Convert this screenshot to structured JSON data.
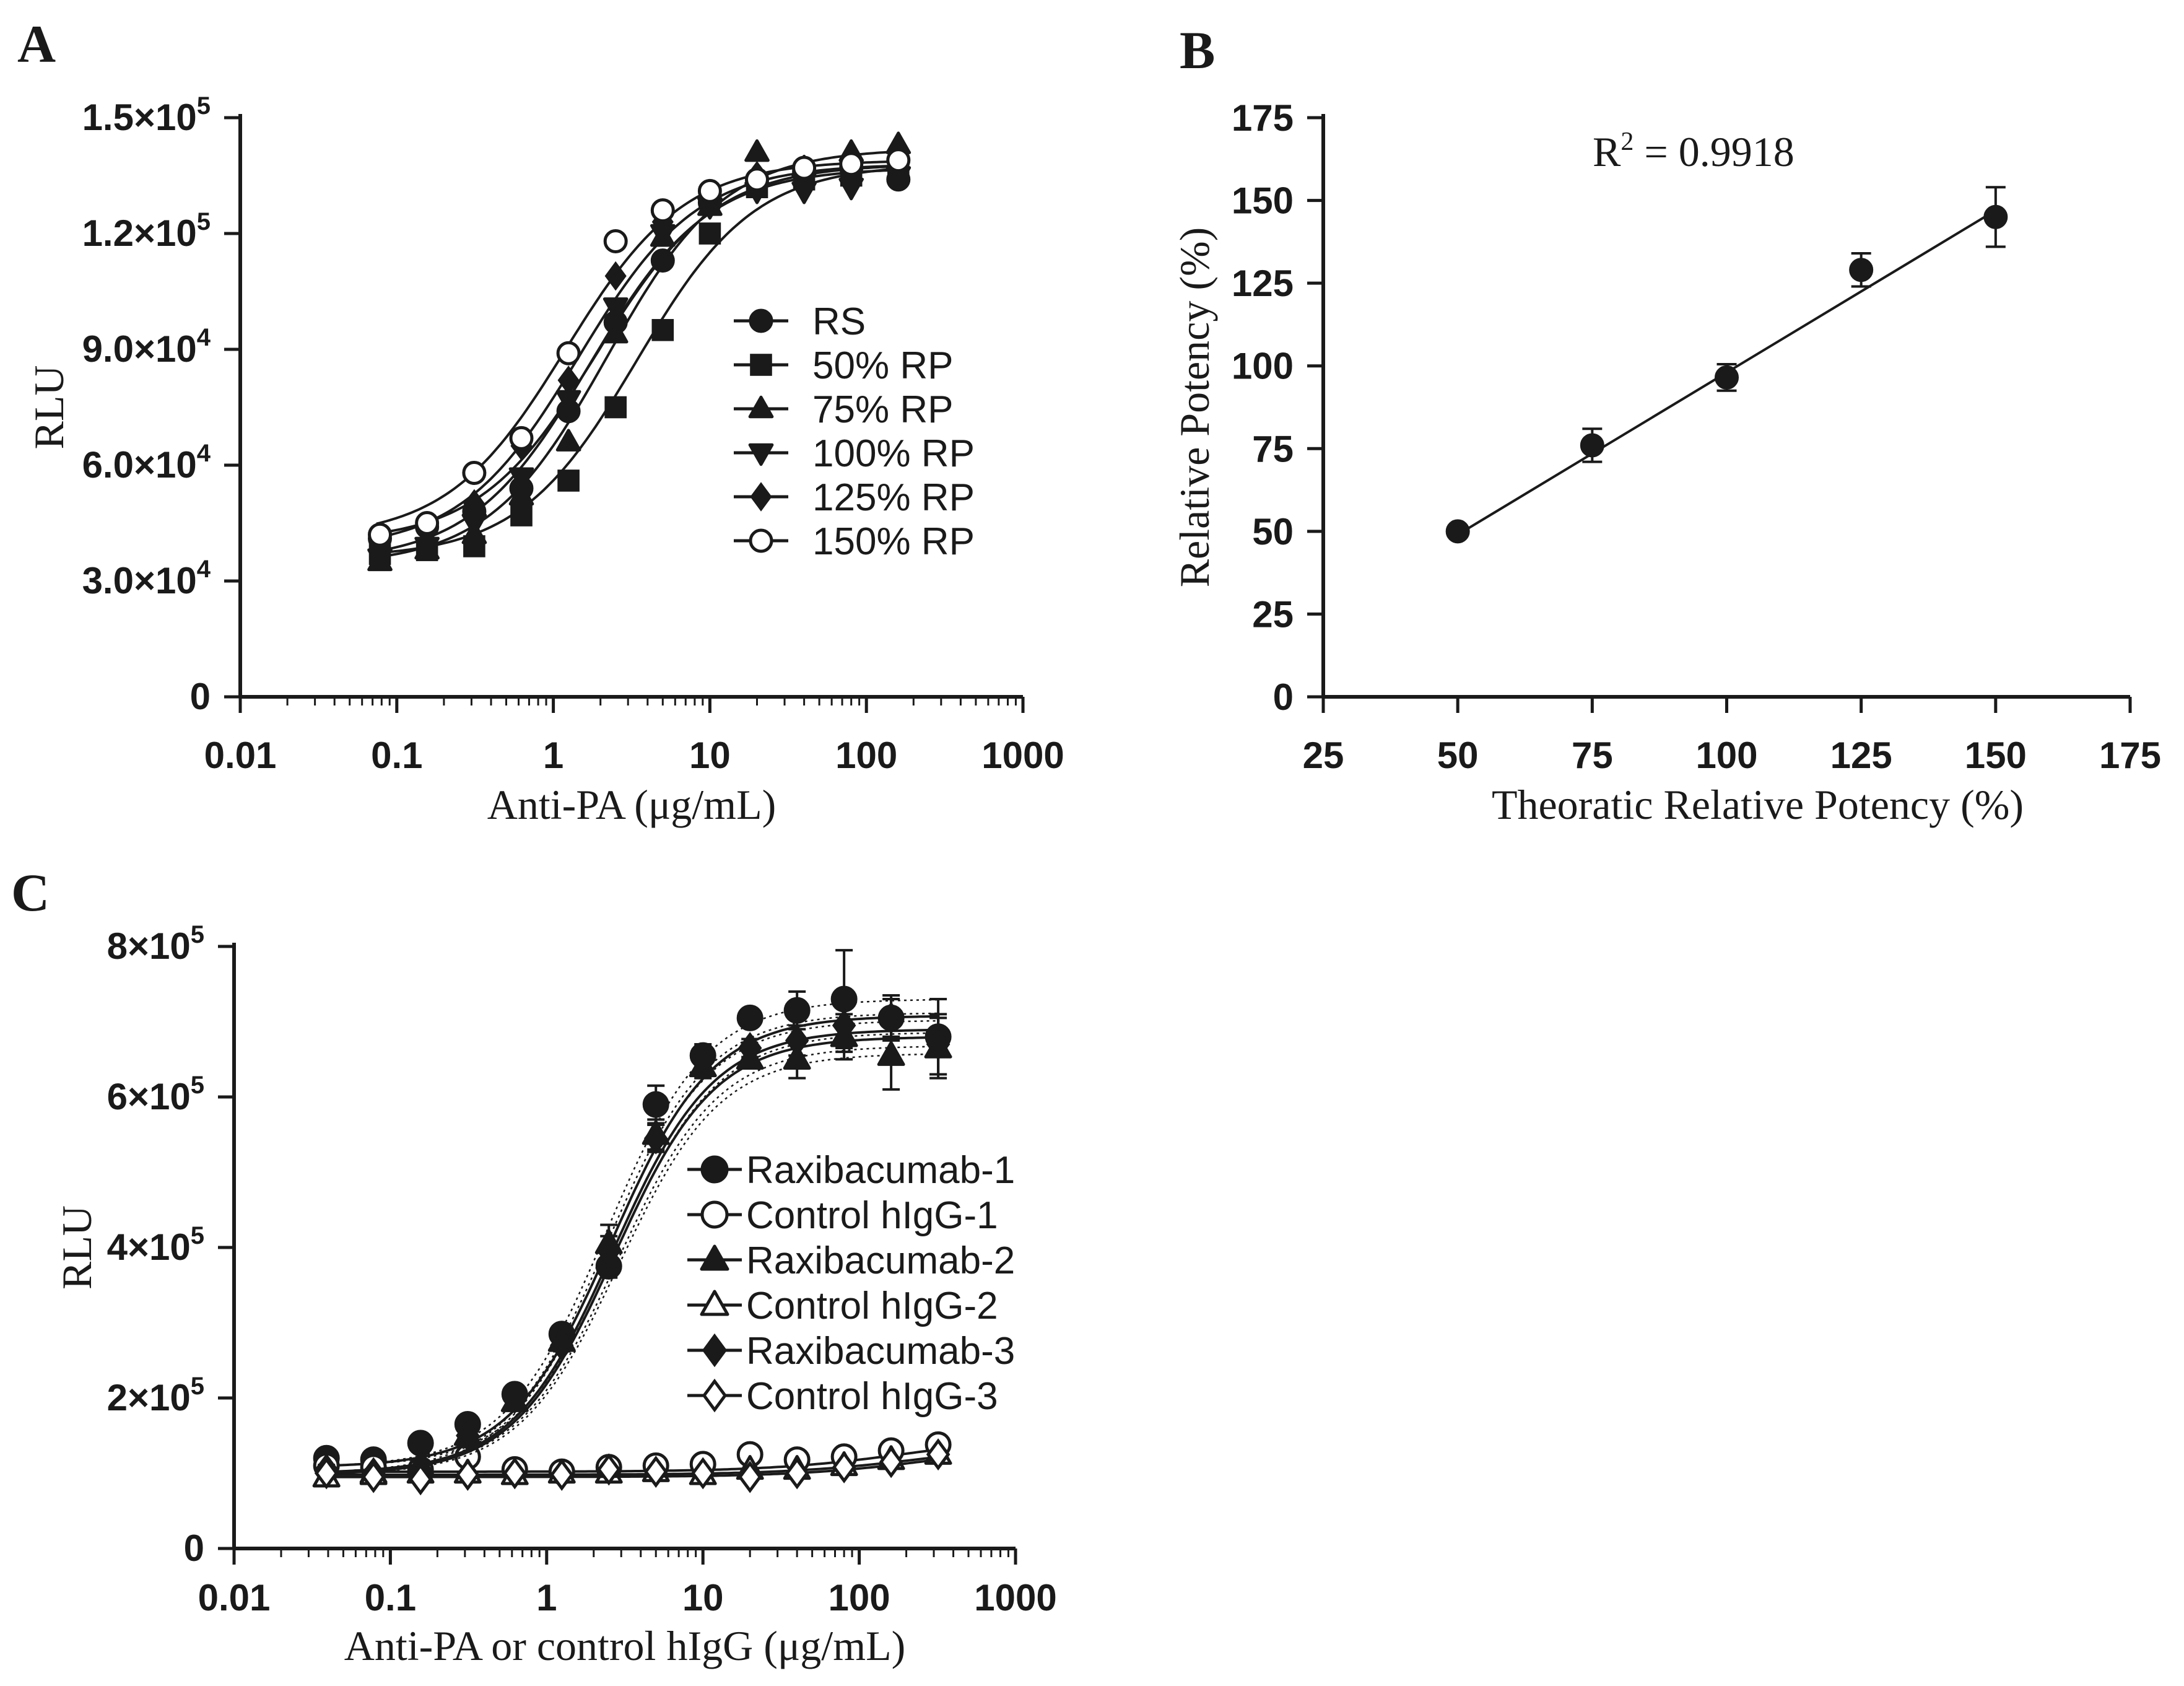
{
  "figure": {
    "background": "#ffffff",
    "ink": "#1a1a1a"
  },
  "chart_data": [
    {
      "id": "A",
      "panel_label": "A",
      "type": "line",
      "x_scale": "log",
      "xlabel": "Anti-PA (μg/mL)",
      "ylabel": "RLU",
      "xlim": [
        0.01,
        1000
      ],
      "ylim": [
        0,
        150000
      ],
      "x_ticks": [
        0.01,
        0.1,
        1,
        10,
        100,
        1000
      ],
      "x_tick_labels": [
        "0.01",
        "0.1",
        "1",
        "10",
        "100",
        "1000"
      ],
      "y_ticks": [
        0,
        30000,
        60000,
        90000,
        120000,
        150000
      ],
      "y_tick_labels": [
        {
          "mant": "0",
          "exp": ""
        },
        {
          "mant": "3.0×10",
          "exp": "4"
        },
        {
          "mant": "6.0×10",
          "exp": "4"
        },
        {
          "mant": "9.0×10",
          "exp": "4"
        },
        {
          "mant": "1.2×10",
          "exp": "5"
        },
        {
          "mant": "1.5×10",
          "exp": "5"
        }
      ],
      "legend_position": "center-right",
      "x": [
        0.078,
        0.156,
        0.3125,
        0.625,
        1.25,
        2.5,
        5,
        10,
        20,
        40,
        80,
        160
      ],
      "series": [
        {
          "name": "RS",
          "marker": "circle",
          "values": [
            41000,
            44000,
            48000,
            54000,
            74000,
            97000,
            113000,
            128000,
            134000,
            136000,
            137000,
            134000
          ],
          "fit": {
            "bottom": 40000,
            "top": 138000,
            "ec50": 1.9,
            "hill": 1.15
          }
        },
        {
          "name": "50% RP",
          "marker": "square",
          "values": [
            37000,
            38000,
            39000,
            47000,
            56000,
            75000,
            95000,
            120000,
            132000,
            134000,
            135000,
            136000
          ],
          "fit": {
            "bottom": 36000,
            "top": 138000,
            "ec50": 3.4,
            "hill": 1.15
          }
        },
        {
          "name": "75% RP",
          "marker": "triangle-up",
          "values": [
            35000,
            38000,
            42000,
            52000,
            66000,
            94000,
            119000,
            127000,
            141000,
            137000,
            141000,
            143000
          ],
          "fit": {
            "bottom": 34000,
            "top": 142000,
            "ec50": 2.2,
            "hill": 1.15
          }
        },
        {
          "name": "100% RP",
          "marker": "triangle-down",
          "values": [
            36000,
            39000,
            45000,
            57000,
            77000,
            101000,
            120000,
            127000,
            131000,
            131000,
            132000,
            135000
          ],
          "fit": {
            "bottom": 35000,
            "top": 137000,
            "ec50": 1.7,
            "hill": 1.15
          }
        },
        {
          "name": "125% RP",
          "marker": "diamond",
          "values": [
            39000,
            43000,
            50000,
            65000,
            82000,
            109000,
            123000,
            130000,
            135000,
            136000,
            136000,
            136000
          ],
          "fit": {
            "bottom": 38000,
            "top": 138000,
            "ec50": 1.45,
            "hill": 1.15
          }
        },
        {
          "name": "150% RP",
          "marker": "circle-open",
          "values": [
            42000,
            45000,
            58000,
            67000,
            89000,
            118000,
            126000,
            131000,
            134000,
            137000,
            138000,
            139000
          ],
          "fit": {
            "bottom": 41000,
            "top": 139000,
            "ec50": 1.2,
            "hill": 1.15
          }
        }
      ]
    },
    {
      "id": "B",
      "panel_label": "B",
      "type": "scatter",
      "xlabel": "Theoratic Relative Potency (%)",
      "ylabel": "Relative Potency (%)",
      "xlim": [
        25,
        175
      ],
      "ylim": [
        0,
        175
      ],
      "x_ticks": [
        25,
        50,
        75,
        100,
        125,
        150,
        175
      ],
      "y_ticks": [
        0,
        25,
        50,
        75,
        100,
        125,
        150,
        175
      ],
      "annotation": {
        "base": "R",
        "exp": "2",
        "text": " = 0.9918"
      },
      "points": [
        {
          "x": 50,
          "y": 50,
          "err": 1
        },
        {
          "x": 75,
          "y": 76,
          "err": 5
        },
        {
          "x": 100,
          "y": 96.5,
          "err": 4
        },
        {
          "x": 125,
          "y": 129,
          "err": 5
        },
        {
          "x": 150,
          "y": 145,
          "err": 9
        }
      ],
      "fit_line": {
        "x": [
          50,
          150
        ],
        "y": [
          49,
          147
        ]
      }
    },
    {
      "id": "C",
      "panel_label": "C",
      "type": "line",
      "x_scale": "log",
      "xlabel": "Anti-PA or control hIgG (μg/mL)",
      "ylabel": "RLU",
      "xlim": [
        0.01,
        1000
      ],
      "ylim": [
        0,
        800000
      ],
      "x_ticks": [
        0.01,
        0.1,
        1,
        10,
        100,
        1000
      ],
      "x_tick_labels": [
        "0.01",
        "0.1",
        "1",
        "10",
        "100",
        "1000"
      ],
      "y_ticks": [
        0,
        200000,
        400000,
        600000,
        800000
      ],
      "y_tick_labels": [
        {
          "mant": "0",
          "exp": ""
        },
        {
          "mant": "2×10",
          "exp": "5"
        },
        {
          "mant": "4×10",
          "exp": "5"
        },
        {
          "mant": "6×10",
          "exp": "5"
        },
        {
          "mant": "8×10",
          "exp": "5"
        }
      ],
      "legend_position": "center-right",
      "x": [
        0.039,
        0.078,
        0.156,
        0.3125,
        0.625,
        1.25,
        2.5,
        5,
        10,
        20,
        40,
        80,
        160,
        320
      ],
      "series": [
        {
          "name": "Raxibacumab-1",
          "marker": "circle",
          "values": [
            120000,
            118000,
            140000,
            165000,
            205000,
            285000,
            375000,
            590000,
            655000,
            705000,
            715000,
            730000,
            705000,
            680000
          ],
          "errors": [
            8000,
            6000,
            5000,
            5000,
            6000,
            8000,
            15000,
            25000,
            15000,
            12000,
            25000,
            65000,
            25000,
            50000
          ],
          "fit": {
            "bottom": 108000,
            "top": 708000,
            "ec50": 2.6,
            "hill": 1.35
          }
        },
        {
          "name": "Control hIgG-1",
          "marker": "circle-open",
          "values": [
            110000,
            108000,
            105000,
            122000,
            105000,
            102000,
            108000,
            110000,
            112000,
            125000,
            118000,
            122000,
            130000,
            138000
          ],
          "fit": {
            "bottom": 102000,
            "top": 150000,
            "ec50": 200,
            "hill": 1.0
          }
        },
        {
          "name": "Raxibacumab-2",
          "marker": "triangle-up",
          "values": [
            95000,
            100000,
            110000,
            150000,
            195000,
            275000,
            405000,
            550000,
            640000,
            650000,
            650000,
            680000,
            655000,
            665000
          ],
          "errors": [
            6000,
            5000,
            5000,
            5000,
            6000,
            8000,
            25000,
            20000,
            15000,
            12000,
            25000,
            30000,
            45000,
            40000
          ],
          "fit": {
            "bottom": 98000,
            "top": 680000,
            "ec50": 2.7,
            "hill": 1.35
          }
        },
        {
          "name": "Control hIgG-2",
          "marker": "triangle-up-open",
          "values": [
            95000,
            98000,
            100000,
            100000,
            98000,
            100000,
            100000,
            102000,
            98000,
            105000,
            105000,
            110000,
            118000,
            125000
          ],
          "fit": {
            "bottom": 98000,
            "top": 140000,
            "ec50": 250,
            "hill": 1.0
          }
        },
        {
          "name": "Raxibacumab-3",
          "marker": "diamond",
          "values": [
            105000,
            100000,
            95000,
            150000,
            200000,
            270000,
            395000,
            545000,
            650000,
            665000,
            675000,
            695000,
            705000,
            670000
          ],
          "errors": [
            6000,
            5000,
            5000,
            5000,
            6000,
            8000,
            20000,
            18000,
            15000,
            12000,
            20000,
            35000,
            30000,
            40000
          ],
          "fit": {
            "bottom": 100000,
            "top": 690000,
            "ec50": 2.65,
            "hill": 1.35
          }
        },
        {
          "name": "Control hIgG-3",
          "marker": "diamond-open",
          "values": [
            100000,
            95000,
            92000,
            98000,
            100000,
            98000,
            105000,
            102000,
            100000,
            95000,
            100000,
            108000,
            115000,
            125000
          ],
          "fit": {
            "bottom": 95000,
            "top": 140000,
            "ec50": 300,
            "hill": 1.0
          }
        }
      ]
    }
  ]
}
